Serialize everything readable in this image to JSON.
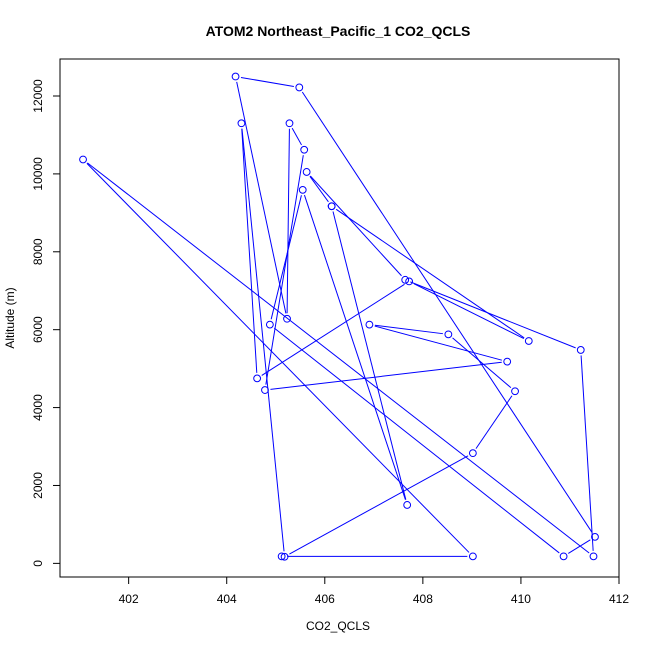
{
  "chart_data": {
    "type": "line",
    "title": "ATOM2 Northeast_Pacific_1 CO2_QCLS",
    "xlabel": "CO2_QCLS",
    "ylabel": "Altitude (m)",
    "xlim": [
      400.6,
      412
    ],
    "ylim": [
      -350,
      12950
    ],
    "xticks": [
      402,
      404,
      406,
      408,
      410,
      412
    ],
    "xtick_labels": [
      "402",
      "404",
      "406",
      "408",
      "410",
      "412"
    ],
    "yticks": [
      0,
      2000,
      4000,
      6000,
      8000,
      10000,
      12000
    ],
    "ytick_labels": [
      "0",
      "2000",
      "4000",
      "6000",
      "8000",
      "10000",
      "12000"
    ],
    "grid": false,
    "series": [
      {
        "color": "#0000ff",
        "marker": "open-circle",
        "x": [
          405.12,
          409.02,
          401.07,
          411.48,
          411.22,
          407.64,
          405.63,
          406.14,
          410.16,
          407.72,
          404.62,
          404.3,
          405.18,
          409.02,
          409.88,
          408.52,
          406.91,
          409.72,
          404.78,
          405.58,
          405.28,
          405.23,
          404.18,
          405.48,
          411.51,
          410.87,
          404.88,
          405.55,
          407.68,
          406.14
        ],
        "y": [
          180,
          180,
          10370,
          180,
          5480,
          7280,
          10050,
          9170,
          5710,
          7240,
          4750,
          11300,
          170,
          2830,
          4420,
          5880,
          6130,
          5180,
          4450,
          10620,
          11300,
          6280,
          12500,
          12220,
          680,
          180,
          6130,
          9590,
          1500,
          9170
        ]
      }
    ]
  }
}
